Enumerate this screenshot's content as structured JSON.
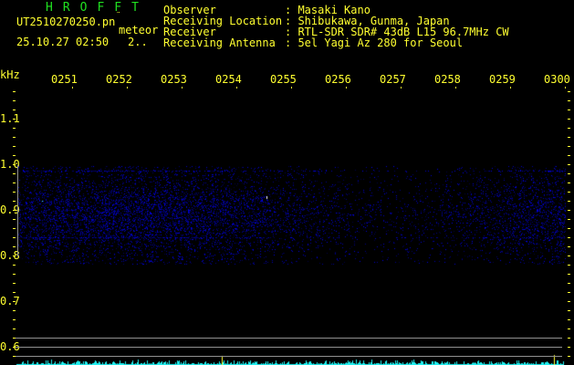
{
  "header": {
    "title": "HROFFT",
    "filename": "UT2510270250.pn",
    "filename_mark": "¨",
    "mode": "meteor",
    "datetime": "25.10.27 02:50",
    "extra": "2..",
    "fields": [
      {
        "label": "Observer",
        "value": ": Masaki Kano"
      },
      {
        "label": "Receiving Location",
        "value": ": Shibukawa, Gunma, Japan"
      },
      {
        "label": "Receiver",
        "value": ": RTL-SDR SDR# 43dB L15 96.7MHz CW"
      },
      {
        "label": "Receiving Antenna",
        "value": ": 5el Yagi Az 280 for Seoul"
      }
    ]
  },
  "axis": {
    "y_unit": "kHz",
    "y_labels": [
      "1.1",
      "1.0",
      "0.9",
      "0.8",
      "0.7",
      "0.6"
    ],
    "time_labels": [
      "0251",
      "0252",
      "0253",
      "0254",
      "0255",
      "0256",
      "0257",
      "0258",
      "0259",
      "0300"
    ]
  },
  "colors": {
    "text": "#ffff30",
    "title": "#20e020",
    "signal": "#2020ff",
    "spectrum": "#20f0f0"
  }
}
